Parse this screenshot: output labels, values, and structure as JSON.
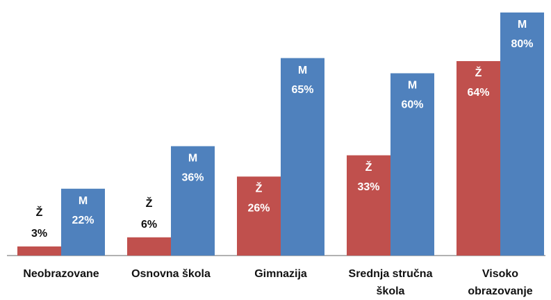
{
  "chart_data": {
    "type": "bar",
    "categories": [
      "Neobrazovane",
      "Osnovna škola",
      "Gimnazija",
      "Srednja stručna škola",
      "Visoko obrazovanje"
    ],
    "series": [
      {
        "name": "Ž",
        "color": "#c0504d",
        "values": [
          3,
          6,
          26,
          33,
          64
        ],
        "value_labels": [
          "3%",
          "6%",
          "26%",
          "33%",
          "64%"
        ]
      },
      {
        "name": "M",
        "color": "#4f81bd",
        "values": [
          22,
          36,
          65,
          60,
          80
        ],
        "value_labels": [
          "22%",
          "36%",
          "65%",
          "60%",
          "80%"
        ]
      }
    ],
    "ylim": [
      0,
      80
    ]
  }
}
